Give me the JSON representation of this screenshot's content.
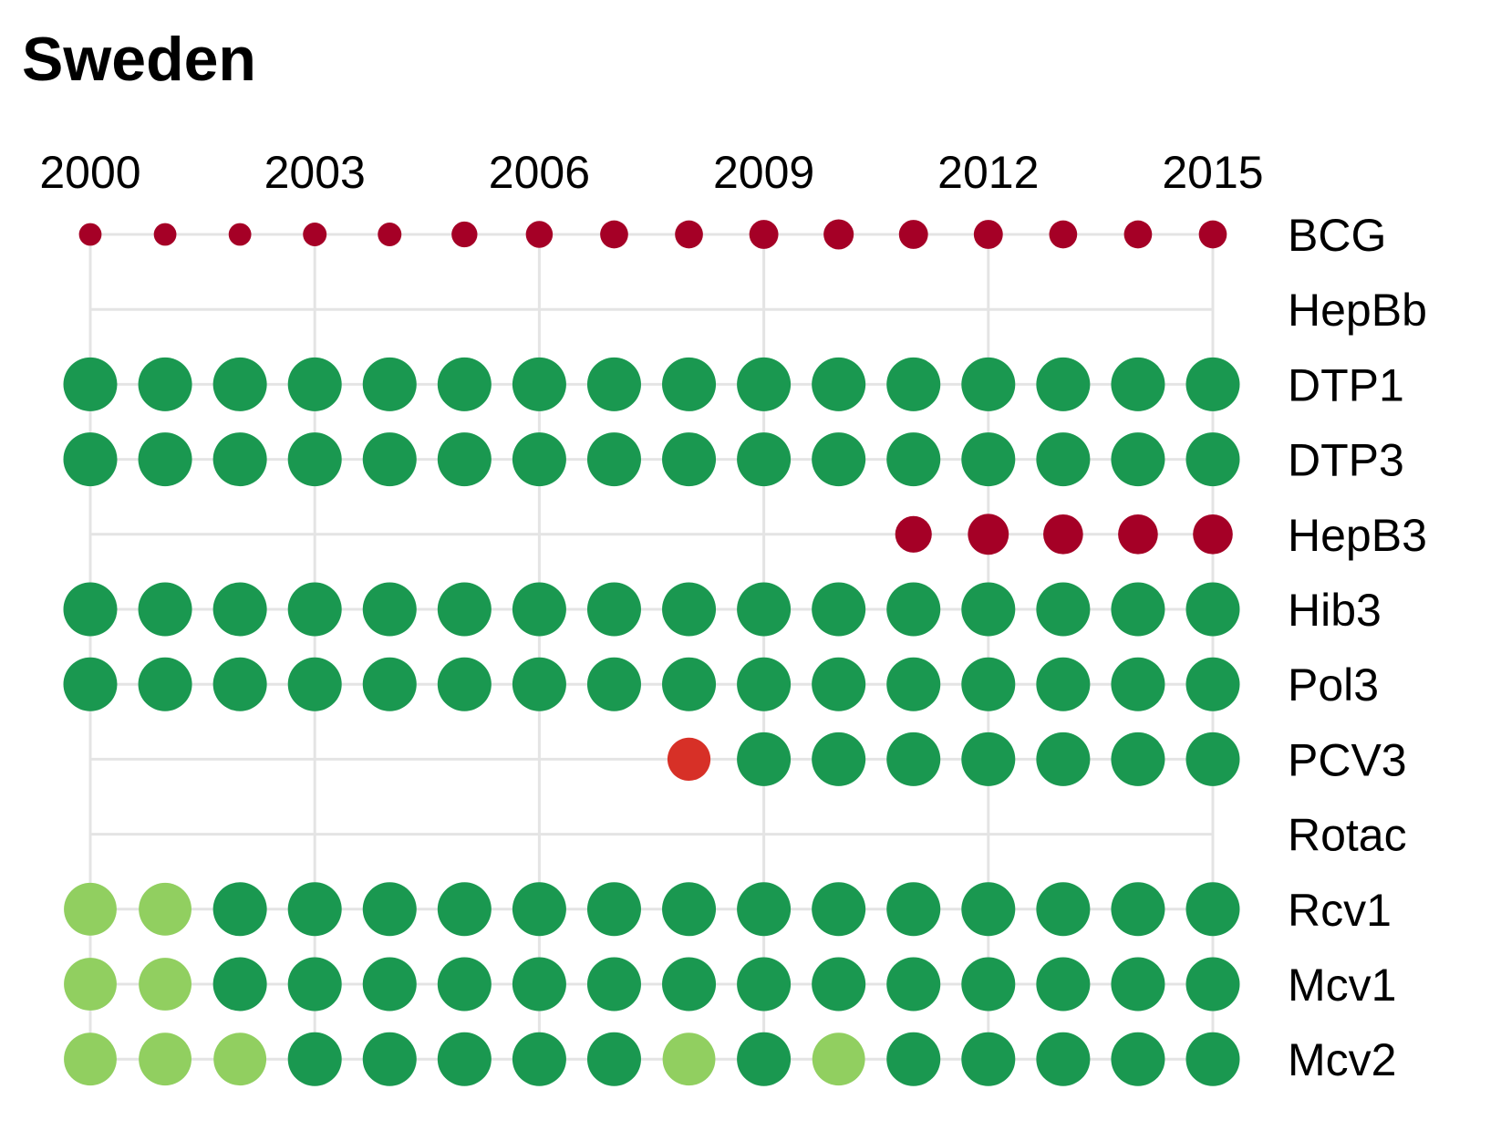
{
  "chart_data": {
    "type": "scatter",
    "title": "Sweden",
    "x": [
      2000,
      2001,
      2002,
      2003,
      2004,
      2005,
      2006,
      2007,
      2008,
      2009,
      2010,
      2011,
      2012,
      2013,
      2014,
      2015
    ],
    "x_tick_labels": [
      "2000",
      "2003",
      "2006",
      "2009",
      "2012",
      "2015"
    ],
    "rows": [
      "BCG",
      "HepBb",
      "DTP1",
      "DTP3",
      "HepB3",
      "Hib3",
      "Pol3",
      "PCV3",
      "Rotac",
      "Rcv1",
      "Mcv1",
      "Mcv2"
    ],
    "colors": {
      "H": "#1a9850",
      "M": "#91cf60",
      "R": "#d73027",
      "D": "#a50026"
    },
    "color_key_note": "H = high coverage (dark green), M = medium (light green), R = red, D = dark red",
    "series": [
      {
        "name": "BCG",
        "years": [
          2000,
          2001,
          2002,
          2003,
          2004,
          2005,
          2006,
          2007,
          2008,
          2009,
          2010,
          2011,
          2012,
          2013,
          2014,
          2015
        ],
        "color": [
          "D",
          "D",
          "D",
          "D",
          "D",
          "D",
          "D",
          "D",
          "D",
          "D",
          "D",
          "D",
          "D",
          "D",
          "D",
          "D"
        ],
        "size": [
          0.42,
          0.42,
          0.42,
          0.44,
          0.44,
          0.48,
          0.5,
          0.52,
          0.52,
          0.54,
          0.56,
          0.54,
          0.54,
          0.52,
          0.52,
          0.52
        ]
      },
      {
        "name": "HepBb",
        "years": [],
        "color": [],
        "size": []
      },
      {
        "name": "DTP1",
        "years": [
          2000,
          2001,
          2002,
          2003,
          2004,
          2005,
          2006,
          2007,
          2008,
          2009,
          2010,
          2011,
          2012,
          2013,
          2014,
          2015
        ],
        "color": [
          "H",
          "H",
          "H",
          "H",
          "H",
          "H",
          "H",
          "H",
          "H",
          "H",
          "H",
          "H",
          "H",
          "H",
          "H",
          "H"
        ],
        "size": [
          1,
          1,
          1,
          1,
          1,
          1,
          1,
          1,
          1,
          1,
          1,
          1,
          1,
          1,
          1,
          1
        ]
      },
      {
        "name": "DTP3",
        "years": [
          2000,
          2001,
          2002,
          2003,
          2004,
          2005,
          2006,
          2007,
          2008,
          2009,
          2010,
          2011,
          2012,
          2013,
          2014,
          2015
        ],
        "color": [
          "H",
          "H",
          "H",
          "H",
          "H",
          "H",
          "H",
          "H",
          "H",
          "H",
          "H",
          "H",
          "H",
          "H",
          "H",
          "H"
        ],
        "size": [
          1,
          1,
          1,
          1,
          1,
          1,
          1,
          1,
          1,
          1,
          1,
          1,
          1,
          1,
          1,
          1
        ]
      },
      {
        "name": "HepB3",
        "years": [
          2011,
          2012,
          2013,
          2014,
          2015
        ],
        "color": [
          "D",
          "D",
          "D",
          "D",
          "D"
        ],
        "size": [
          0.68,
          0.76,
          0.74,
          0.74,
          0.74
        ]
      },
      {
        "name": "Hib3",
        "years": [
          2000,
          2001,
          2002,
          2003,
          2004,
          2005,
          2006,
          2007,
          2008,
          2009,
          2010,
          2011,
          2012,
          2013,
          2014,
          2015
        ],
        "color": [
          "H",
          "H",
          "H",
          "H",
          "H",
          "H",
          "H",
          "H",
          "H",
          "H",
          "H",
          "H",
          "H",
          "H",
          "H",
          "H"
        ],
        "size": [
          1,
          1,
          1,
          1,
          1,
          1,
          1,
          1,
          1,
          1,
          1,
          1,
          1,
          1,
          1,
          1
        ]
      },
      {
        "name": "Pol3",
        "years": [
          2000,
          2001,
          2002,
          2003,
          2004,
          2005,
          2006,
          2007,
          2008,
          2009,
          2010,
          2011,
          2012,
          2013,
          2014,
          2015
        ],
        "color": [
          "H",
          "H",
          "H",
          "H",
          "H",
          "H",
          "H",
          "H",
          "H",
          "H",
          "H",
          "H",
          "H",
          "H",
          "H",
          "H"
        ],
        "size": [
          1,
          1,
          1,
          1,
          1,
          1,
          1,
          1,
          1,
          1,
          1,
          1,
          1,
          1,
          1,
          1
        ]
      },
      {
        "name": "PCV3",
        "years": [
          2008,
          2009,
          2010,
          2011,
          2012,
          2013,
          2014,
          2015
        ],
        "color": [
          "R",
          "H",
          "H",
          "H",
          "H",
          "H",
          "H",
          "H"
        ],
        "size": [
          0.8,
          1,
          1,
          1,
          1,
          1,
          1,
          1
        ]
      },
      {
        "name": "Rotac",
        "years": [],
        "color": [],
        "size": []
      },
      {
        "name": "Rcv1",
        "years": [
          2000,
          2001,
          2002,
          2003,
          2004,
          2005,
          2006,
          2007,
          2008,
          2009,
          2010,
          2011,
          2012,
          2013,
          2014,
          2015
        ],
        "color": [
          "M",
          "M",
          "H",
          "H",
          "H",
          "H",
          "H",
          "H",
          "H",
          "H",
          "H",
          "H",
          "H",
          "H",
          "H",
          "H"
        ],
        "size": [
          0.98,
          0.98,
          1,
          1,
          1,
          1,
          1,
          1,
          1,
          1,
          1,
          1,
          1,
          1,
          1,
          1
        ]
      },
      {
        "name": "Mcv1",
        "years": [
          2000,
          2001,
          2002,
          2003,
          2004,
          2005,
          2006,
          2007,
          2008,
          2009,
          2010,
          2011,
          2012,
          2013,
          2014,
          2015
        ],
        "color": [
          "M",
          "M",
          "H",
          "H",
          "H",
          "H",
          "H",
          "H",
          "H",
          "H",
          "H",
          "H",
          "H",
          "H",
          "H",
          "H"
        ],
        "size": [
          0.98,
          0.98,
          1,
          1,
          1,
          1,
          1,
          1,
          1,
          1,
          1,
          1,
          1,
          1,
          1,
          1
        ]
      },
      {
        "name": "Mcv2",
        "years": [
          2000,
          2001,
          2002,
          2003,
          2004,
          2005,
          2006,
          2007,
          2008,
          2009,
          2010,
          2011,
          2012,
          2013,
          2014,
          2015
        ],
        "color": [
          "M",
          "M",
          "M",
          "H",
          "H",
          "H",
          "H",
          "H",
          "M",
          "H",
          "M",
          "H",
          "H",
          "H",
          "H",
          "H"
        ],
        "size": [
          0.98,
          0.98,
          0.98,
          1,
          1,
          1,
          1,
          1,
          0.98,
          1,
          0.98,
          1,
          1,
          1,
          1,
          1
        ]
      }
    ],
    "xlim": [
      2000,
      2015
    ],
    "grid": true,
    "legend": "none"
  }
}
